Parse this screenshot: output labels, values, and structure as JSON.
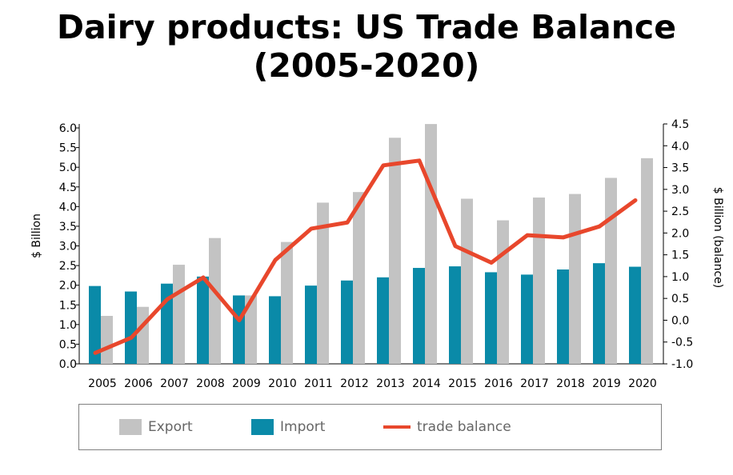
{
  "chart_data": {
    "type": "bar",
    "title": "Dairy products: US Trade Balance\n(2005-2020)",
    "ylabel": "$ Billion",
    "y2label": "$ Billion (balance)",
    "categories": [
      "2005",
      "2006",
      "2007",
      "2008",
      "2009",
      "2010",
      "2011",
      "2012",
      "2013",
      "2014",
      "2015",
      "2016",
      "2017",
      "2018",
      "2019",
      "2020"
    ],
    "ylim": [
      0,
      6.0
    ],
    "y_ticks": [
      "0.0",
      "0.5",
      "1.0",
      "1.5",
      "2.0",
      "2.5",
      "3.0",
      "3.5",
      "4.0",
      "4.5",
      "5.0",
      "5.5",
      "6.0"
    ],
    "y2lim": [
      -1.0,
      4.5
    ],
    "y2_ticks": [
      "-1.0",
      "-0.5",
      "0.0",
      "0.5",
      "1.0",
      "1.5",
      "2.0",
      "2.5",
      "3.0",
      "3.5",
      "4.0",
      "4.5"
    ],
    "grid": false,
    "legend_position": "bottom",
    "series": [
      {
        "name": "Import",
        "type": "bar",
        "axis": "left",
        "color": "#0a8aa8",
        "values": [
          1.98,
          1.84,
          2.04,
          2.22,
          1.74,
          1.72,
          1.99,
          2.12,
          2.2,
          2.44,
          2.48,
          2.33,
          2.27,
          2.4,
          2.56,
          2.47
        ]
      },
      {
        "name": "Export",
        "type": "bar",
        "axis": "left",
        "color": "#c3c3c3",
        "values": [
          1.22,
          1.45,
          2.52,
          3.2,
          1.74,
          3.1,
          4.1,
          4.37,
          5.75,
          6.1,
          4.2,
          3.65,
          4.23,
          4.32,
          4.73,
          5.23
        ]
      },
      {
        "name": "trade balance",
        "type": "line",
        "axis": "right",
        "color": "#e8472c",
        "values": [
          -0.75,
          -0.4,
          0.48,
          0.98,
          0.0,
          1.38,
          2.1,
          2.24,
          3.55,
          3.66,
          1.7,
          1.32,
          1.95,
          1.9,
          2.15,
          2.75
        ]
      }
    ]
  }
}
